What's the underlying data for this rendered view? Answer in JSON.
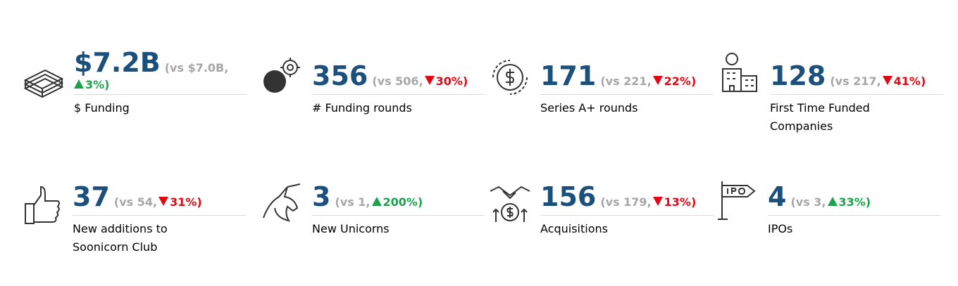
{
  "tiles": [
    {
      "value": "$7.2B",
      "compare": "(vs $7.0B,",
      "change": "3%)",
      "trend": "up",
      "label": "$ Funding"
    },
    {
      "value": "356",
      "compare": "(vs 506,",
      "change": "30%)",
      "trend": "down",
      "label": "# Funding rounds"
    },
    {
      "value": "171",
      "compare": "(vs 221,",
      "change": "22%)",
      "trend": "down",
      "label": "Series A+ rounds"
    },
    {
      "value": "128",
      "compare": "(vs 217,",
      "change": "41%)",
      "trend": "down",
      "label": "First Time Funded Companies"
    },
    {
      "value": "37",
      "compare": "(vs 54,",
      "change": "31%)",
      "trend": "down",
      "label": "New additions to Soonicorn Club"
    },
    {
      "value": "3",
      "compare": "(vs 1,",
      "change": "200%)",
      "trend": "up",
      "label": "New Unicorns"
    },
    {
      "value": "156",
      "compare": "(vs 179,",
      "change": "13%)",
      "trend": "down",
      "label": "Acquisitions"
    },
    {
      "value": "4",
      "compare": "(vs 3,",
      "change": "33%)",
      "trend": "up",
      "label": "IPOs"
    }
  ]
}
